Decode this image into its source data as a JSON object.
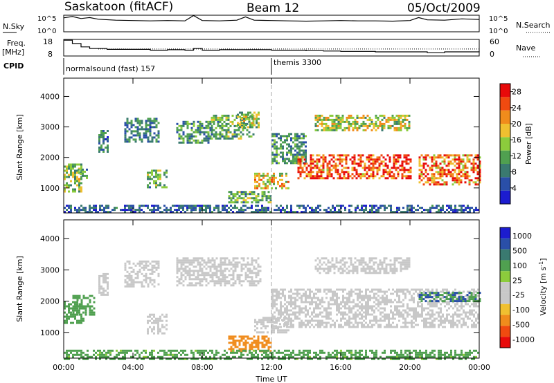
{
  "header": {
    "station": "Saskatoon (fitACF)",
    "beam": "Beam 12",
    "date": "05/Oct/2009"
  },
  "colors": {
    "scale": [
      "#1c1ccf",
      "#2a4fa8",
      "#3a7a70",
      "#50a050",
      "#8ccc3c",
      "#f0c030",
      "#f08c1c",
      "#f04a10",
      "#e80a0a"
    ],
    "velocity": [
      "#1c1ccf",
      "#2a4fa8",
      "#3a7a70",
      "#50a050",
      "#8ccc3c",
      "#c8c8c8",
      "#c8c8c8",
      "#f0c030",
      "#f08c1c",
      "#f04a10",
      "#e80a0a"
    ]
  },
  "chart_data": [
    {
      "type": "line",
      "name": "noise",
      "left_label": "N.Sky",
      "right_label": "N.Search",
      "left_ticks": [
        "10^5",
        "10^0"
      ],
      "right_ticks": [
        "10^5",
        "10^0"
      ],
      "x_unit": "hours UT",
      "xlim": [
        0,
        24
      ],
      "ylim": [
        0,
        5
      ],
      "series": [
        {
          "values_x": [
            0,
            0.5,
            1,
            1.5,
            2,
            3,
            4,
            5,
            6,
            7,
            7.5,
            8,
            9,
            10,
            10.5,
            11,
            12,
            13,
            14,
            15,
            16,
            17,
            18,
            19,
            20,
            20.5,
            21,
            22,
            23,
            24
          ],
          "values_y": [
            4.2,
            4.6,
            4.0,
            4.3,
            3.8,
            3.5,
            3.4,
            3.3,
            3.4,
            3.3,
            4.9,
            3.4,
            3.3,
            3.5,
            4.5,
            3.5,
            3.4,
            3.3,
            3.2,
            3.3,
            3.4,
            3.3,
            3.3,
            3.2,
            3.4,
            4.3,
            3.6,
            3.5,
            3.9,
            3.7
          ]
        }
      ]
    },
    {
      "type": "line",
      "name": "frequency",
      "left_label": "Freq.",
      "left_unit": "[MHz]",
      "right_label": "Nave",
      "left_ticks": [
        "18",
        "8"
      ],
      "right_ticks": [
        "60",
        "0"
      ],
      "x_unit": "hours UT",
      "xlim": [
        0,
        24
      ],
      "ylim": [
        8,
        18
      ],
      "series": [
        {
          "values_x": [
            0,
            0.5,
            1,
            1.5,
            2.5,
            3.5,
            5,
            6,
            7,
            7.5,
            8,
            9,
            10,
            11,
            12,
            13,
            14,
            15,
            16,
            17,
            18,
            19,
            20,
            21,
            22,
            24
          ],
          "values_y": [
            17.5,
            15.5,
            13.5,
            12.5,
            12.0,
            12.0,
            11.5,
            11.8,
            11.5,
            12.5,
            11.5,
            11.8,
            11.8,
            11.8,
            11.5,
            11.5,
            11.2,
            11.0,
            10.8,
            10.8,
            10.5,
            10.5,
            10.5,
            10.0,
            10.5,
            11.0
          ]
        }
      ],
      "dotted_level": 12.2
    },
    {
      "type": "table",
      "name": "cpid",
      "label": "CPID",
      "segments": [
        {
          "start": 0,
          "end": 12,
          "text": "normalsound (fast) 157"
        },
        {
          "start": 12,
          "end": 24,
          "text": "themis 3300"
        }
      ]
    },
    {
      "type": "heatmap",
      "name": "power",
      "ylabel": "Slant Range [km]",
      "yticks": [
        1000,
        2000,
        3000,
        4000
      ],
      "ylim": [
        180,
        4600
      ],
      "xlim": [
        0,
        24
      ],
      "colorbar_label": "Power [dB]",
      "colorbar_ticks": [
        "4",
        "8",
        "12",
        "16",
        "20",
        "24",
        "28"
      ],
      "colorbar_range": [
        0,
        30
      ],
      "regions": [
        {
          "x": [
            0.0,
            1.0
          ],
          "y": [
            900,
            1800
          ],
          "value": 14
        },
        {
          "x": [
            0.8,
            1.5
          ],
          "y": [
            1300,
            1700
          ],
          "value": 10
        },
        {
          "x": [
            2.0,
            2.6
          ],
          "y": [
            2200,
            2900
          ],
          "value": 8
        },
        {
          "x": [
            3.5,
            5.5
          ],
          "y": [
            2500,
            3300
          ],
          "value": 8
        },
        {
          "x": [
            4.8,
            6.0
          ],
          "y": [
            1000,
            1600
          ],
          "value": 12
        },
        {
          "x": [
            6.5,
            8.5
          ],
          "y": [
            2500,
            3200
          ],
          "value": 10
        },
        {
          "x": [
            8.5,
            11.0
          ],
          "y": [
            2600,
            3400
          ],
          "value": 12
        },
        {
          "x": [
            10.0,
            11.3
          ],
          "y": [
            3000,
            3500
          ],
          "value": 14
        },
        {
          "x": [
            9.5,
            12.0
          ],
          "y": [
            500,
            900
          ],
          "value": 12
        },
        {
          "x": [
            11.0,
            13.0
          ],
          "y": [
            1000,
            1500
          ],
          "value": 18
        },
        {
          "x": [
            12.0,
            14.0
          ],
          "y": [
            1800,
            2800
          ],
          "value": 10
        },
        {
          "x": [
            13.5,
            20.0
          ],
          "y": [
            1300,
            2100
          ],
          "value": 26
        },
        {
          "x": [
            20.5,
            24.0
          ],
          "y": [
            1100,
            2100
          ],
          "value": 24
        },
        {
          "x": [
            14.5,
            20.0
          ],
          "y": [
            2900,
            3400
          ],
          "value": 16
        },
        {
          "x": [
            0.0,
            24.0
          ],
          "y": [
            180,
            450
          ],
          "value": 6
        }
      ]
    },
    {
      "type": "heatmap",
      "name": "velocity",
      "ylabel": "Slant Range [km]",
      "yticks": [
        1000,
        2000,
        3000,
        4000
      ],
      "ylim": [
        180,
        4600
      ],
      "xlim": [
        0,
        24
      ],
      "colorbar_label": "Velocity [m s^-1]",
      "colorbar_ticks": [
        "1000",
        "500",
        "100",
        "25",
        "-25",
        "-100",
        "-500",
        "-1000"
      ],
      "regions": [
        {
          "x": [
            0.0,
            1.2
          ],
          "y": [
            1300,
            2000
          ],
          "value": 100
        },
        {
          "x": [
            0.5,
            1.8
          ],
          "y": [
            1600,
            2200
          ],
          "value": 100
        },
        {
          "x": [
            2.0,
            2.6
          ],
          "y": [
            2200,
            2900
          ],
          "value": 0
        },
        {
          "x": [
            3.5,
            5.5
          ],
          "y": [
            2500,
            3300
          ],
          "value": 0
        },
        {
          "x": [
            4.8,
            6.0
          ],
          "y": [
            1000,
            1600
          ],
          "value": 0
        },
        {
          "x": [
            6.5,
            11.3
          ],
          "y": [
            2500,
            3400
          ],
          "value": 0
        },
        {
          "x": [
            9.5,
            12.0
          ],
          "y": [
            400,
            900
          ],
          "value": -200
        },
        {
          "x": [
            11.0,
            13.0
          ],
          "y": [
            1000,
            1500
          ],
          "value": 0
        },
        {
          "x": [
            12.0,
            24.0
          ],
          "y": [
            1200,
            2400
          ],
          "value": 0
        },
        {
          "x": [
            14.5,
            20.0
          ],
          "y": [
            2900,
            3400
          ],
          "value": 0
        },
        {
          "x": [
            20.5,
            24.0
          ],
          "y": [
            2000,
            2300
          ],
          "value": 300
        },
        {
          "x": [
            0.0,
            24.0
          ],
          "y": [
            180,
            450
          ],
          "value": 80
        }
      ]
    }
  ],
  "xaxis": {
    "ticks": [
      "00:00",
      "04:00",
      "08:00",
      "12:00",
      "16:00",
      "20:00",
      "00:00"
    ],
    "label": "Time UT"
  }
}
